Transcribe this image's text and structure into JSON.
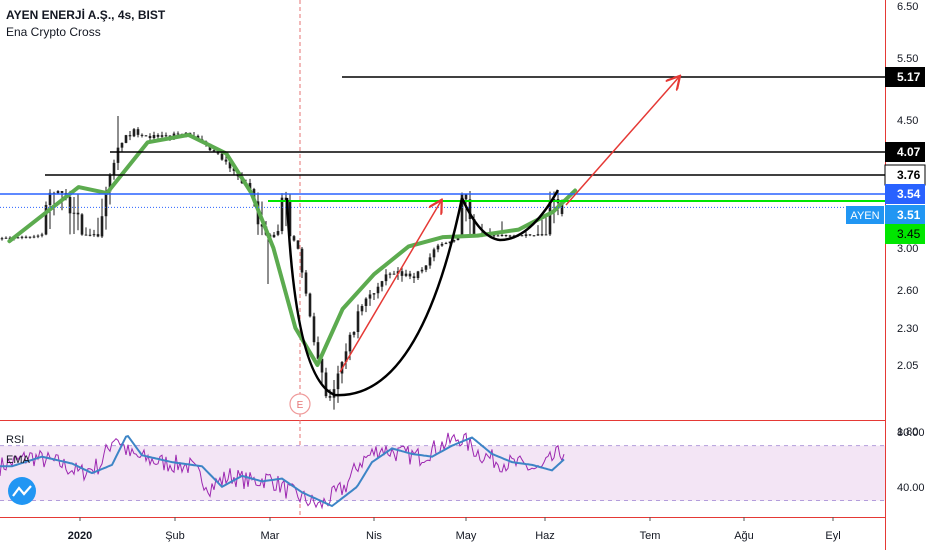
{
  "header": {
    "title": "AYEN ENERJİ A.Ş., 4s, BIST",
    "indicator": "Ena Crypto Cross"
  },
  "rsi_panel": {
    "label_rsi": "RSI",
    "label_ema": "EMA"
  },
  "colors": {
    "candle": "#1e1e1e",
    "ema": "#5cab4f",
    "pattern": "#000000",
    "arrow": "#e53935",
    "price_line_blue": "#2962ff",
    "support_green": "#00e600",
    "rsi_line": "#9c27b0",
    "rsi_ema": "#3d85c6",
    "rsi_band": "#f3e5f5",
    "separator": "#e53935"
  },
  "chart_data": [
    {
      "type": "candlestick",
      "title": "AYEN ENERJİ A.Ş., 4s, BIST",
      "x_ticks": [
        "2020",
        "Şub",
        "Mar",
        "Nis",
        "May",
        "Haz",
        "Tem",
        "Ağu",
        "Eyl"
      ],
      "y_ticks": [
        "6.50",
        "5.50",
        "5.17",
        "4.50",
        "4.07",
        "3.76",
        "3.54",
        "3.51",
        "3.45",
        "3.00",
        "2.60",
        "2.30",
        "2.05",
        "1.80"
      ],
      "ylim": [
        1.7,
        6.6
      ],
      "price_labels": [
        {
          "value": 5.17,
          "text": "5.17",
          "style": "black"
        },
        {
          "value": 4.07,
          "text": "4.07",
          "style": "black"
        },
        {
          "value": 3.76,
          "text": "3.76",
          "style": "white"
        },
        {
          "value": 3.54,
          "text": "3.54",
          "style": "blue"
        },
        {
          "value": 3.51,
          "text": "3.51",
          "style": "ayen",
          "symbol": "AYEN"
        },
        {
          "value": 3.45,
          "text": "3.45",
          "style": "green"
        }
      ],
      "horizontal_levels": [
        5.17,
        4.07,
        3.76,
        3.54,
        3.45
      ],
      "ema_series": {
        "x": [
          "2019-12-15",
          "2020-01-06",
          "2020-01-15",
          "2020-01-28",
          "2020-02-10",
          "2020-02-22",
          "2020-03-01",
          "2020-03-08",
          "2020-03-15",
          "2020-03-22",
          "2020-03-30",
          "2020-04-09",
          "2020-04-20",
          "2020-05-01",
          "2020-05-12",
          "2020-05-25",
          "2020-06-05",
          "2020-06-12"
        ],
        "y": [
          3.22,
          3.62,
          3.55,
          4.2,
          4.3,
          4.05,
          3.55,
          3.0,
          2.3,
          2.05,
          2.45,
          2.75,
          3.05,
          3.35,
          3.4,
          3.46,
          3.5,
          3.58
        ]
      },
      "annotation_marker": "E"
    },
    {
      "type": "line",
      "title": "RSI",
      "series": [
        {
          "name": "RSI"
        },
        {
          "name": "EMA"
        }
      ],
      "y_ticks": [
        "80.00",
        "40.00"
      ],
      "ylim": [
        18,
        88
      ],
      "bands": [
        30,
        70
      ]
    }
  ]
}
